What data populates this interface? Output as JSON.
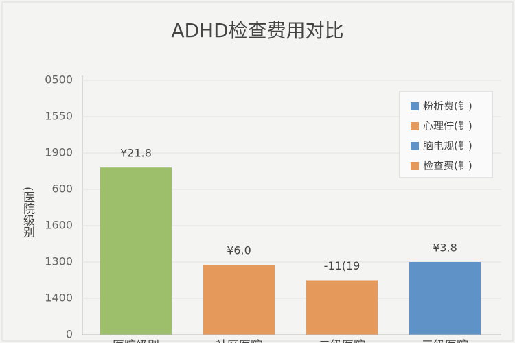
{
  "chart_data": {
    "type": "bar",
    "title": "ADHD检查费用对比",
    "y_label": "(医院级别",
    "categories": [
      "医院级别",
      "社区医院",
      "二级医院",
      "三级医院"
    ],
    "values": [
      4.6,
      1.92,
      1.5,
      2.0
    ],
    "colors": [
      "#9dbe6a",
      "#e5995a",
      "#e5995a",
      "#5f93c7"
    ],
    "annotations": [
      "¥21.8",
      "¥6.0",
      "-11(19",
      "¥3.8"
    ],
    "ylim": [
      0,
      7
    ],
    "yticks": [
      {
        "value": 0,
        "label": "0"
      },
      {
        "value": 1,
        "label": "1400"
      },
      {
        "value": 2,
        "label": "1300"
      },
      {
        "value": 3,
        "label": "1600"
      },
      {
        "value": 4,
        "label": "600"
      },
      {
        "value": 5,
        "label": "1900"
      },
      {
        "value": 6,
        "label": "1550"
      },
      {
        "value": 7,
        "label": "0500"
      }
    ],
    "grid": true,
    "legend": {
      "position": "top-right",
      "entries": [
        {
          "label": "粉析费(钅)",
          "color": "#5f93c7"
        },
        {
          "label": "心理佇(钅)",
          "color": "#e5995a"
        },
        {
          "label": "脑电规(钅)",
          "color": "#5f93c7"
        },
        {
          "label": "检查费(钅)",
          "color": "#e5995a"
        }
      ]
    }
  }
}
